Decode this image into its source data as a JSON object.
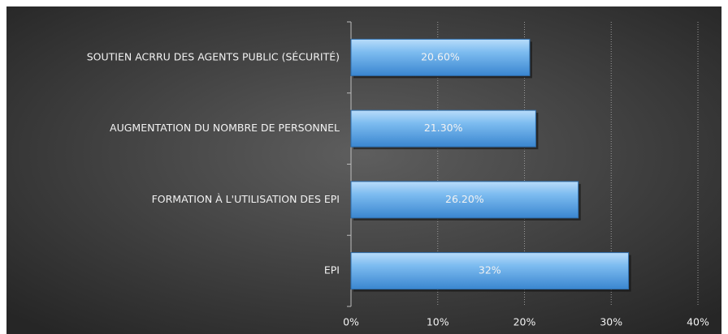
{
  "chart_data": {
    "type": "bar",
    "orientation": "horizontal",
    "categories": [
      "SOUTIEN ACRRU DES AGENTS PUBLIC (SÉCURITÉ)",
      "AUGMENTATION DU NOMBRE DE PERSONNEL",
      "FORMATION À L'UTILISATION DES EPI",
      "EPI"
    ],
    "values": [
      20.6,
      21.3,
      26.2,
      32
    ],
    "value_labels": [
      "20.60%",
      "21.30%",
      "26.20%",
      "32%"
    ],
    "color": "#5aa6e8",
    "xlim": [
      0,
      40
    ],
    "xticks": [
      {
        "value": 0,
        "label": "0%"
      },
      {
        "value": 10,
        "label": "10%"
      },
      {
        "value": 20,
        "label": "20%"
      },
      {
        "value": 30,
        "label": "30%"
      },
      {
        "value": 40,
        "label": "40%"
      }
    ],
    "grid": true
  }
}
